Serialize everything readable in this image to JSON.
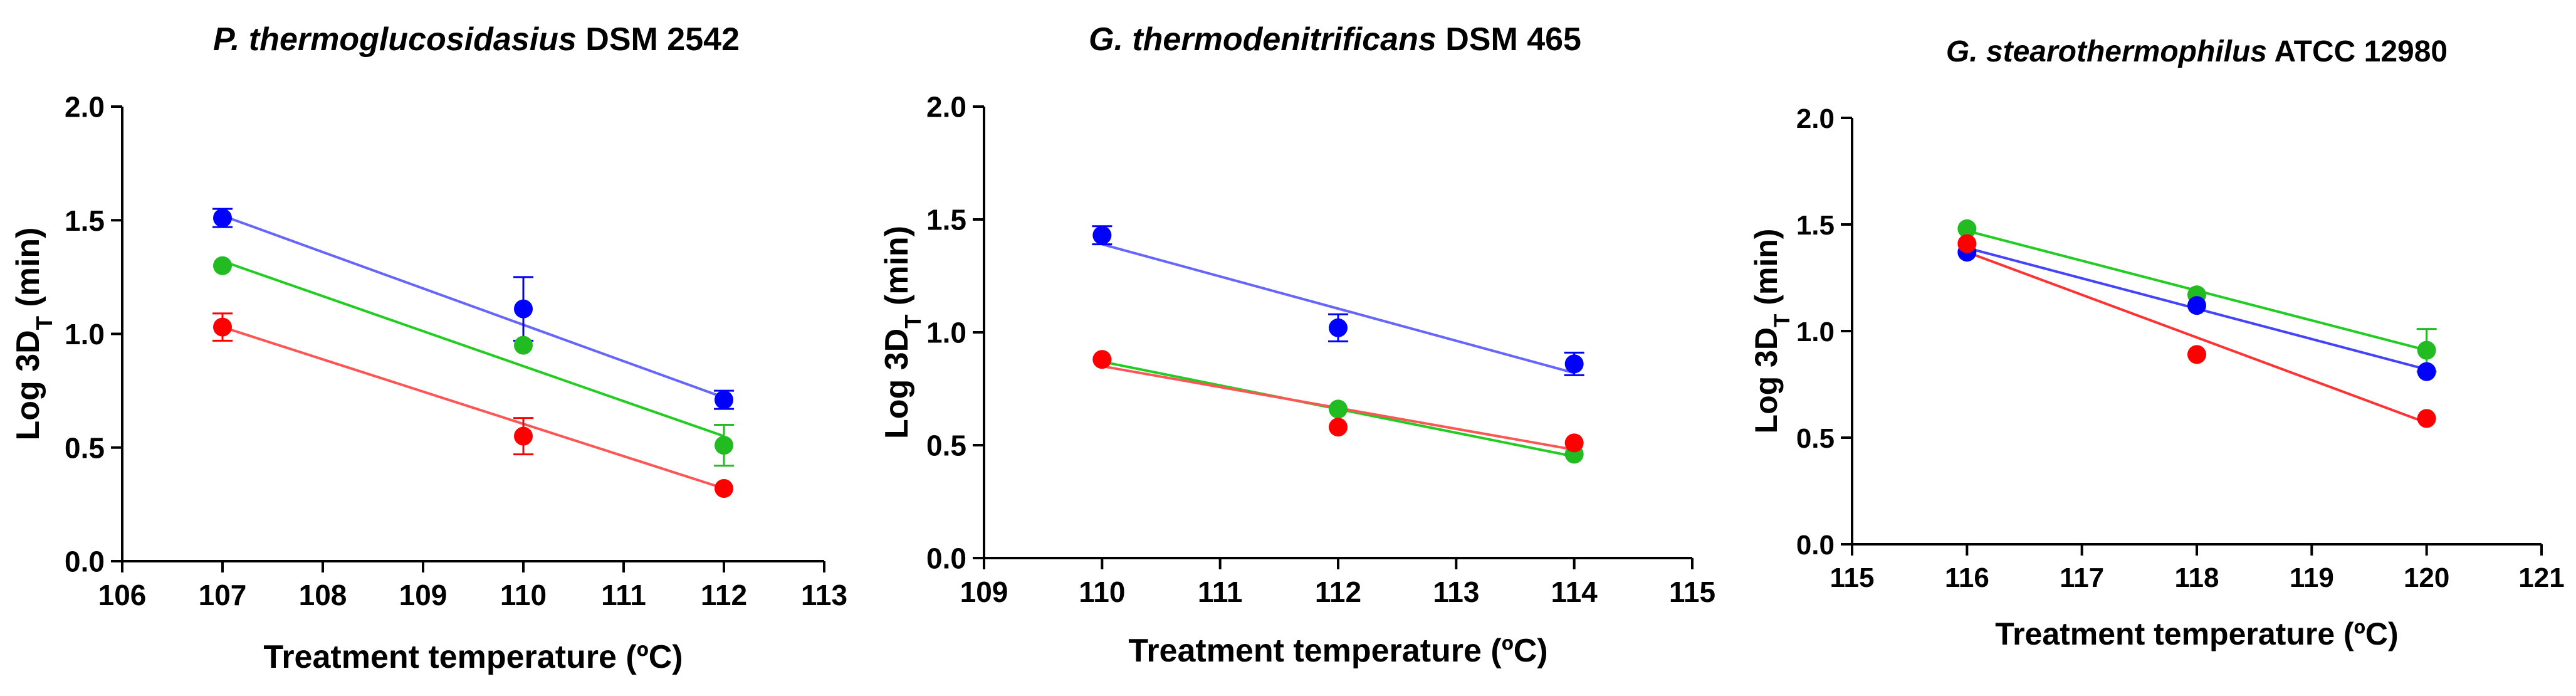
{
  "chart_data": [
    {
      "type": "scatter",
      "title_italic": "P. thermoglucosidasius",
      "title_rest": " DSM 2542",
      "xlabel": "Treatment temperature (ºC)",
      "ylabel_main": "Log 3D",
      "ylabel_sub": "T",
      "ylabel_unit": " (min)",
      "xlim": [
        106,
        113
      ],
      "ylim": [
        0,
        2.0
      ],
      "xticks": [
        "106",
        "107",
        "108",
        "109",
        "110",
        "111",
        "112",
        "113"
      ],
      "yticks": [
        "0.0",
        "0.5",
        "1.0",
        "1.5",
        "2.0"
      ],
      "series": [
        {
          "name": "blue",
          "color": "#0000ff",
          "line_color": "#6666ff",
          "points": [
            {
              "x": 107,
              "y": 1.51,
              "err": 0.04
            },
            {
              "x": 110,
              "y": 1.11,
              "err": 0.14
            },
            {
              "x": 112,
              "y": 0.71,
              "err": 0.04
            }
          ],
          "fit": [
            {
              "x": 107,
              "y": 1.52
            },
            {
              "x": 112,
              "y": 0.72
            }
          ]
        },
        {
          "name": "green",
          "color": "#22bb22",
          "line_color": "#22cc22",
          "points": [
            {
              "x": 107,
              "y": 1.3,
              "err": 0
            },
            {
              "x": 110,
              "y": 0.95,
              "err": 0
            },
            {
              "x": 112,
              "y": 0.51,
              "err": 0.09
            }
          ],
          "fit": [
            {
              "x": 107,
              "y": 1.32
            },
            {
              "x": 112,
              "y": 0.55
            }
          ]
        },
        {
          "name": "red",
          "color": "#ff0000",
          "line_color": "#ff5555",
          "points": [
            {
              "x": 107,
              "y": 1.03,
              "err": 0.06
            },
            {
              "x": 110,
              "y": 0.55,
              "err": 0.08
            },
            {
              "x": 112,
              "y": 0.32,
              "err": 0
            }
          ],
          "fit": [
            {
              "x": 107,
              "y": 1.03
            },
            {
              "x": 112,
              "y": 0.32
            }
          ]
        }
      ]
    },
    {
      "type": "scatter",
      "title_italic": "G. thermodenitrificans",
      "title_rest": " DSM 465",
      "xlabel": "Treatment temperature (ºC)",
      "ylabel_main": "Log 3D",
      "ylabel_sub": "T",
      "ylabel_unit": " (min)",
      "xlim": [
        109,
        115
      ],
      "ylim": [
        0,
        2.0
      ],
      "xticks": [
        "109",
        "110",
        "111",
        "112",
        "113",
        "114",
        "115"
      ],
      "yticks": [
        "0.0",
        "0.5",
        "1.0",
        "1.5",
        "2.0"
      ],
      "series": [
        {
          "name": "blue",
          "color": "#0000ff",
          "line_color": "#6666ff",
          "points": [
            {
              "x": 110,
              "y": 1.43,
              "err": 0.04
            },
            {
              "x": 112,
              "y": 1.02,
              "err": 0.06
            },
            {
              "x": 114,
              "y": 0.86,
              "err": 0.05
            }
          ],
          "fit": [
            {
              "x": 110,
              "y": 1.39
            },
            {
              "x": 114,
              "y": 0.82
            }
          ]
        },
        {
          "name": "green",
          "color": "#22bb22",
          "line_color": "#22cc22",
          "points": [
            {
              "x": 110,
              "y": 0.88,
              "err": 0
            },
            {
              "x": 112,
              "y": 0.66,
              "err": 0
            },
            {
              "x": 114,
              "y": 0.46,
              "err": 0
            }
          ],
          "fit": [
            {
              "x": 110,
              "y": 0.87
            },
            {
              "x": 114,
              "y": 0.45
            }
          ]
        },
        {
          "name": "red",
          "color": "#ff0000",
          "line_color": "#ff5555",
          "points": [
            {
              "x": 110,
              "y": 0.88,
              "err": 0
            },
            {
              "x": 112,
              "y": 0.58,
              "err": 0
            },
            {
              "x": 114,
              "y": 0.51,
              "err": 0
            }
          ],
          "fit": [
            {
              "x": 110,
              "y": 0.85
            },
            {
              "x": 114,
              "y": 0.48
            }
          ]
        }
      ]
    },
    {
      "type": "scatter",
      "title_italic": "G. stearothermophilus",
      "title_rest": " ATCC 12980",
      "xlabel": "Treatment temperature (ºC)",
      "ylabel_main": "Log 3D",
      "ylabel_sub": "T",
      "ylabel_unit": " (min)",
      "xlim": [
        115,
        121
      ],
      "ylim": [
        0,
        2.0
      ],
      "xticks": [
        "115",
        "116",
        "117",
        "118",
        "119",
        "120",
        "121"
      ],
      "yticks": [
        "0.0",
        "0.5",
        "1.0",
        "1.5",
        "2.0"
      ],
      "series": [
        {
          "name": "green",
          "color": "#22bb22",
          "line_color": "#22cc22",
          "points": [
            {
              "x": 116,
              "y": 1.48,
              "err": 0
            },
            {
              "x": 118,
              "y": 1.17,
              "err": 0
            },
            {
              "x": 120,
              "y": 0.91,
              "err": 0.1
            }
          ],
          "fit": [
            {
              "x": 116,
              "y": 1.47
            },
            {
              "x": 120,
              "y": 0.91
            }
          ]
        },
        {
          "name": "blue",
          "color": "#0000ff",
          "line_color": "#4444ff",
          "points": [
            {
              "x": 116,
              "y": 1.37,
              "err": 0
            },
            {
              "x": 118,
              "y": 1.12,
              "err": 0
            },
            {
              "x": 120,
              "y": 0.81,
              "err": 0
            }
          ],
          "fit": [
            {
              "x": 116,
              "y": 1.39
            },
            {
              "x": 120,
              "y": 0.82
            }
          ]
        },
        {
          "name": "red",
          "color": "#ff0000",
          "line_color": "#ff3333",
          "points": [
            {
              "x": 116,
              "y": 1.41,
              "err": 0
            },
            {
              "x": 118,
              "y": 0.89,
              "err": 0
            },
            {
              "x": 120,
              "y": 0.59,
              "err": 0
            }
          ],
          "fit": [
            {
              "x": 116,
              "y": 1.37
            },
            {
              "x": 120,
              "y": 0.57
            }
          ]
        }
      ]
    }
  ]
}
